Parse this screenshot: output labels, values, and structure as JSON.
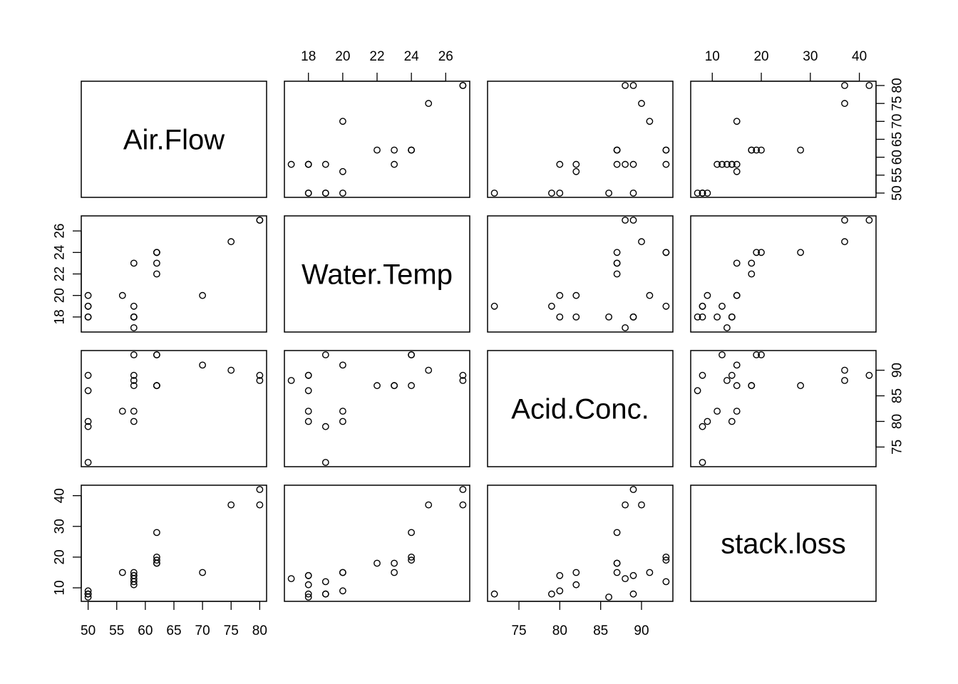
{
  "chart_data": {
    "type": "scatter",
    "subtype": "scatterplot-matrix",
    "variables": [
      "Air.Flow",
      "Water.Temp",
      "Acid.Conc.",
      "stack.loss"
    ],
    "ranges": {
      "Air.Flow": [
        50,
        80
      ],
      "Water.Temp": [
        17,
        27
      ],
      "Acid.Conc.": [
        72,
        93
      ],
      "stack.loss": [
        7,
        42
      ]
    },
    "axis_ticks": {
      "Air.Flow": [
        50,
        55,
        60,
        65,
        70,
        75,
        80
      ],
      "Water.Temp": [
        18,
        20,
        22,
        24,
        26
      ],
      "Acid.Conc.": [
        75,
        80,
        85,
        90
      ],
      "stack.loss": [
        10,
        20,
        30,
        40
      ]
    },
    "tick_placement": {
      "Air.Flow": [
        "bottom",
        "right"
      ],
      "Water.Temp": [
        "top",
        "left"
      ],
      "Acid.Conc.": [
        "bottom",
        "right"
      ],
      "stack.loss": [
        "top",
        "left"
      ]
    },
    "observations": {
      "Air.Flow": [
        80,
        80,
        75,
        62,
        62,
        62,
        62,
        62,
        58,
        58,
        58,
        58,
        58,
        58,
        50,
        50,
        50,
        50,
        50,
        56,
        70
      ],
      "Water.Temp": [
        27,
        27,
        25,
        24,
        22,
        23,
        24,
        24,
        23,
        18,
        18,
        17,
        18,
        19,
        18,
        18,
        19,
        19,
        20,
        20,
        20
      ],
      "Acid.Conc.": [
        89,
        88,
        90,
        87,
        87,
        87,
        93,
        93,
        87,
        80,
        89,
        88,
        82,
        93,
        89,
        86,
        72,
        79,
        80,
        82,
        91
      ],
      "stack.loss": [
        42,
        37,
        37,
        28,
        18,
        18,
        19,
        20,
        15,
        14,
        14,
        13,
        11,
        12,
        8,
        7,
        8,
        8,
        9,
        15,
        15
      ]
    },
    "grid": false,
    "legend": "none"
  }
}
